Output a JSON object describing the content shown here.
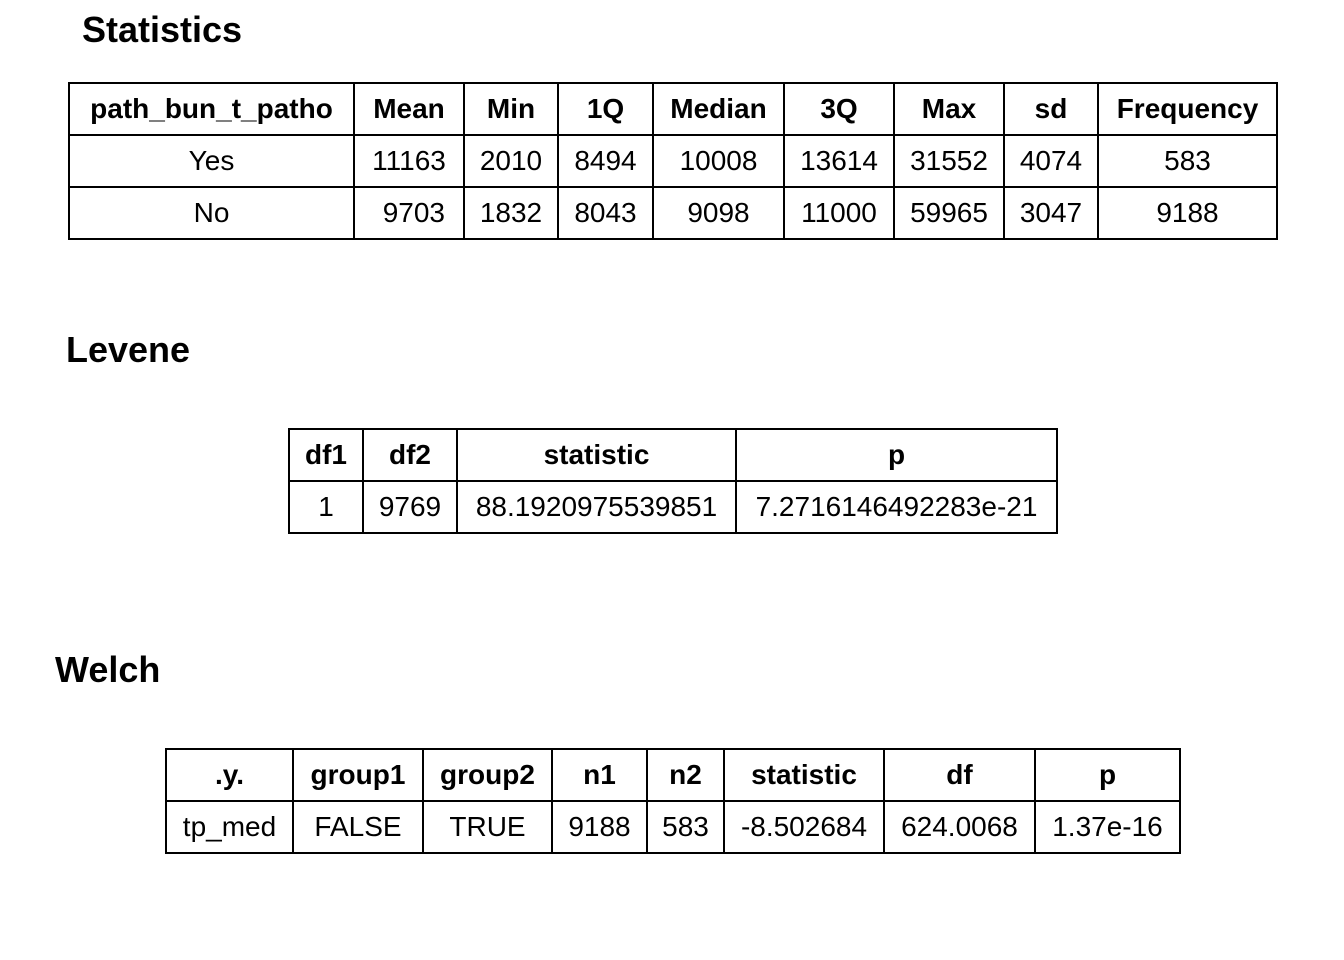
{
  "statistics": {
    "title": "Statistics",
    "headers": [
      "path_bun_t_patho",
      "Mean",
      "Min",
      "1Q",
      "Median",
      "3Q",
      "Max",
      "sd",
      "Frequency"
    ],
    "rows": [
      [
        "Yes",
        "11163",
        "2010",
        "8494",
        "10008",
        "13614",
        "31552",
        "4074",
        "583"
      ],
      [
        "No",
        "9703",
        "1832",
        "8043",
        "9098",
        "11000",
        "59965",
        "3047",
        "9188"
      ]
    ]
  },
  "levene": {
    "title": "Levene",
    "headers": [
      "df1",
      "df2",
      "statistic",
      "p"
    ],
    "rows": [
      [
        "1",
        "9769",
        "88.1920975539851",
        "7.2716146492283e-21"
      ]
    ]
  },
  "welch": {
    "title": "Welch",
    "headers": [
      ".y.",
      "group1",
      "group2",
      "n1",
      "n2",
      "statistic",
      "df",
      "p"
    ],
    "rows": [
      [
        "tp_med",
        "FALSE",
        "TRUE",
        "9188",
        "583",
        "-8.502684",
        "624.0068",
        "1.37e-16"
      ]
    ]
  }
}
